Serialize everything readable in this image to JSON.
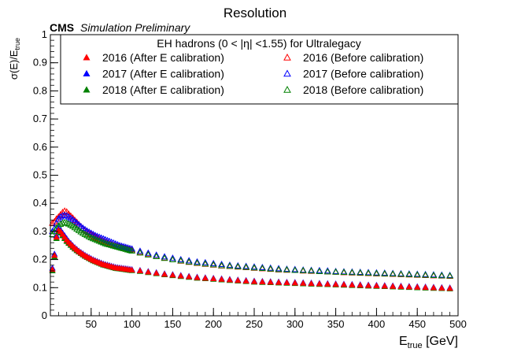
{
  "chart_data": {
    "type": "scatter",
    "title": "Resolution",
    "header": {
      "cms": "CMS",
      "subtitle": "Simulation Preliminary"
    },
    "xlabel": "E",
    "xlabel_sub": "true",
    "xlabel_unit": " [GeV]",
    "ylabel": "σ(E)/E",
    "ylabel_sub": "true",
    "xlim": [
      0,
      500
    ],
    "ylim": [
      0,
      1
    ],
    "x_ticks": [
      50,
      100,
      150,
      200,
      250,
      300,
      350,
      400,
      450,
      500
    ],
    "x_tick_labels": [
      "50",
      "100",
      "150",
      "200",
      "250",
      "300",
      "350",
      "400",
      "450",
      "500"
    ],
    "y_ticks": [
      0,
      0.1,
      0.2,
      0.3,
      0.4,
      0.5,
      0.6,
      0.7,
      0.8,
      0.9,
      1
    ],
    "y_tick_labels": [
      "0",
      "0.1",
      "0.2",
      "0.3",
      "0.4",
      "0.5",
      "0.6",
      "0.7",
      "0.8",
      "0.9",
      "1"
    ],
    "grid": false,
    "legend": {
      "title": "EH hadrons (0 < |η| <1.55) for Ultralegacy",
      "placement": "top"
    },
    "x": [
      2.5,
      5,
      7.5,
      10,
      12.5,
      15,
      17.5,
      20,
      22.5,
      25,
      27.5,
      30,
      32.5,
      35,
      37.5,
      40,
      42.5,
      45,
      47.5,
      50,
      52.5,
      55,
      57.5,
      60,
      62.5,
      65,
      67.5,
      70,
      72.5,
      75,
      77.5,
      80,
      82.5,
      85,
      87.5,
      90,
      92.5,
      95,
      97.5,
      100,
      110,
      120,
      130,
      140,
      150,
      160,
      170,
      180,
      190,
      200,
      210,
      220,
      230,
      240,
      250,
      260,
      270,
      280,
      290,
      300,
      310,
      320,
      330,
      340,
      350,
      360,
      370,
      380,
      390,
      400,
      410,
      420,
      430,
      440,
      450,
      460,
      470,
      480,
      490
    ],
    "series": [
      {
        "name": "2016 (After E calibration)",
        "color": "#ff0000",
        "marker": "filled-triangle",
        "y": [
          0.165,
          0.215,
          0.28,
          0.305,
          0.3,
          0.29,
          0.28,
          0.27,
          0.262,
          0.255,
          0.248,
          0.241,
          0.235,
          0.229,
          0.224,
          0.219,
          0.214,
          0.21,
          0.206,
          0.202,
          0.198,
          0.195,
          0.192,
          0.189,
          0.186,
          0.183,
          0.181,
          0.179,
          0.177,
          0.175,
          0.173,
          0.171,
          0.17,
          0.169,
          0.168,
          0.167,
          0.166,
          0.165,
          0.164,
          0.163,
          0.16,
          0.156,
          0.152,
          0.148,
          0.145,
          0.142,
          0.139,
          0.136,
          0.134,
          0.132,
          0.13,
          0.128,
          0.126,
          0.124,
          0.122,
          0.121,
          0.12,
          0.119,
          0.118,
          0.117,
          0.116,
          0.115,
          0.114,
          0.113,
          0.112,
          0.111,
          0.11,
          0.109,
          0.108,
          0.107,
          0.106,
          0.105,
          0.104,
          0.103,
          0.102,
          0.101,
          0.1,
          0.099,
          0.098
        ]
      },
      {
        "name": "2017 (After E calibration)",
        "color": "#0000ff",
        "marker": "filled-triangle",
        "y": [
          0.17,
          0.22,
          0.285,
          0.31,
          0.305,
          0.295,
          0.285,
          0.275,
          0.265,
          0.258,
          0.25,
          0.243,
          0.237,
          0.231,
          0.226,
          0.221,
          0.216,
          0.212,
          0.208,
          0.204,
          0.2,
          0.197,
          0.194,
          0.191,
          0.188,
          0.185,
          0.183,
          0.181,
          0.179,
          0.177,
          0.175,
          0.173,
          0.172,
          0.171,
          0.17,
          0.169,
          0.168,
          0.167,
          0.166,
          0.165,
          0.162,
          0.158,
          0.154,
          0.15,
          0.147,
          0.144,
          0.141,
          0.138,
          0.136,
          0.134,
          0.132,
          0.13,
          0.128,
          0.126,
          0.124,
          0.123,
          0.122,
          0.121,
          0.12,
          0.119,
          0.118,
          0.117,
          0.116,
          0.115,
          0.114,
          0.113,
          0.112,
          0.111,
          0.11,
          0.109,
          0.108,
          0.107,
          0.106,
          0.105,
          0.104,
          0.103,
          0.102,
          0.101,
          0.1
        ]
      },
      {
        "name": "2018 (After E calibration)",
        "color": "#008000",
        "marker": "filled-triangle",
        "y": [
          0.16,
          0.21,
          0.275,
          0.3,
          0.295,
          0.285,
          0.275,
          0.265,
          0.258,
          0.251,
          0.244,
          0.238,
          0.232,
          0.227,
          0.222,
          0.217,
          0.212,
          0.208,
          0.204,
          0.2,
          0.196,
          0.193,
          0.19,
          0.187,
          0.184,
          0.181,
          0.179,
          0.177,
          0.175,
          0.173,
          0.171,
          0.169,
          0.168,
          0.167,
          0.166,
          0.165,
          0.164,
          0.163,
          0.162,
          0.161,
          0.158,
          0.154,
          0.15,
          0.146,
          0.143,
          0.14,
          0.137,
          0.134,
          0.132,
          0.13,
          0.128,
          0.126,
          0.124,
          0.122,
          0.12,
          0.119,
          0.118,
          0.117,
          0.116,
          0.115,
          0.114,
          0.113,
          0.112,
          0.111,
          0.11,
          0.109,
          0.108,
          0.107,
          0.106,
          0.105,
          0.104,
          0.103,
          0.102,
          0.101,
          0.1,
          0.099,
          0.098,
          0.097,
          0.096
        ]
      },
      {
        "name": "2016 (Before calibration)",
        "color": "#ff0000",
        "marker": "open-triangle",
        "y": [
          0.33,
          0.335,
          0.345,
          0.352,
          0.36,
          0.368,
          0.373,
          0.37,
          0.362,
          0.355,
          0.348,
          0.34,
          0.333,
          0.325,
          0.318,
          0.311,
          0.305,
          0.3,
          0.295,
          0.29,
          0.285,
          0.281,
          0.277,
          0.273,
          0.269,
          0.266,
          0.263,
          0.26,
          0.257,
          0.254,
          0.251,
          0.249,
          0.247,
          0.245,
          0.243,
          0.241,
          0.239,
          0.238,
          0.236,
          0.235,
          0.226,
          0.219,
          0.212,
          0.206,
          0.2,
          0.195,
          0.191,
          0.187,
          0.184,
          0.181,
          0.178,
          0.176,
          0.174,
          0.172,
          0.17,
          0.168,
          0.166,
          0.164,
          0.163,
          0.162,
          0.16,
          0.159,
          0.158,
          0.157,
          0.156,
          0.154,
          0.153,
          0.152,
          0.151,
          0.15,
          0.149,
          0.148,
          0.147,
          0.146,
          0.145,
          0.144,
          0.143,
          0.142,
          0.141
        ]
      },
      {
        "name": "2017 (Before calibration)",
        "color": "#0000ff",
        "marker": "open-triangle",
        "y": [
          0.3,
          0.31,
          0.33,
          0.345,
          0.352,
          0.356,
          0.358,
          0.356,
          0.352,
          0.347,
          0.342,
          0.336,
          0.33,
          0.324,
          0.318,
          0.312,
          0.307,
          0.302,
          0.298,
          0.294,
          0.29,
          0.286,
          0.283,
          0.28,
          0.277,
          0.274,
          0.271,
          0.268,
          0.265,
          0.262,
          0.259,
          0.256,
          0.253,
          0.25,
          0.248,
          0.246,
          0.244,
          0.242,
          0.24,
          0.238,
          0.23,
          0.223,
          0.216,
          0.21,
          0.205,
          0.2,
          0.196,
          0.192,
          0.189,
          0.186,
          0.183,
          0.18,
          0.178,
          0.176,
          0.174,
          0.172,
          0.17,
          0.168,
          0.166,
          0.165,
          0.163,
          0.162,
          0.161,
          0.16,
          0.158,
          0.157,
          0.156,
          0.155,
          0.154,
          0.153,
          0.152,
          0.151,
          0.15,
          0.149,
          0.148,
          0.147,
          0.146,
          0.145,
          0.144
        ]
      },
      {
        "name": "2018 (Before calibration)",
        "color": "#008000",
        "marker": "open-triangle",
        "y": [
          0.29,
          0.3,
          0.312,
          0.32,
          0.326,
          0.33,
          0.332,
          0.33,
          0.327,
          0.323,
          0.319,
          0.314,
          0.309,
          0.304,
          0.299,
          0.294,
          0.29,
          0.286,
          0.282,
          0.278,
          0.275,
          0.272,
          0.269,
          0.266,
          0.263,
          0.26,
          0.257,
          0.255,
          0.253,
          0.251,
          0.249,
          0.247,
          0.245,
          0.243,
          0.241,
          0.239,
          0.237,
          0.235,
          0.233,
          0.231,
          0.224,
          0.217,
          0.211,
          0.205,
          0.2,
          0.196,
          0.192,
          0.188,
          0.185,
          0.182,
          0.179,
          0.177,
          0.175,
          0.173,
          0.171,
          0.169,
          0.167,
          0.165,
          0.164,
          0.162,
          0.161,
          0.16,
          0.158,
          0.157,
          0.156,
          0.155,
          0.154,
          0.153,
          0.152,
          0.151,
          0.15,
          0.149,
          0.148,
          0.147,
          0.146,
          0.145,
          0.144,
          0.143,
          0.142
        ]
      }
    ]
  }
}
